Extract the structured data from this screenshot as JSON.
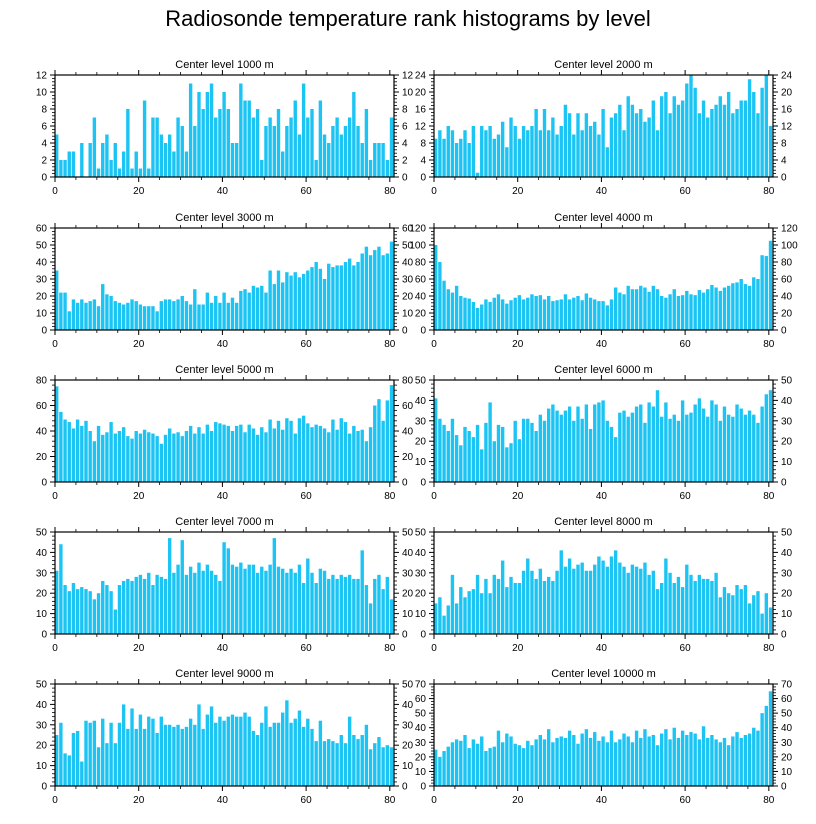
{
  "title": "Radiosonde temperature rank histograms by level",
  "colors": {
    "bar": "#1cc4f4",
    "frame": "#000000"
  },
  "chart_data": [
    {
      "type": "bar",
      "title": "Center level 1000 m",
      "xlim": [
        0,
        81
      ],
      "ylim": [
        0,
        12
      ],
      "yticks": [
        0,
        2,
        4,
        6,
        8,
        10,
        12
      ],
      "xticks": [
        0,
        20,
        40,
        60,
        80
      ],
      "values": [
        5,
        2,
        2,
        3,
        3,
        0,
        4,
        0,
        4,
        7,
        1,
        4,
        5,
        2,
        4,
        1,
        3,
        8,
        1,
        3,
        1,
        9,
        1,
        7,
        7,
        5,
        4,
        5,
        3,
        7,
        6,
        3,
        11,
        6,
        10,
        8,
        10,
        11,
        7,
        8,
        10,
        8,
        4,
        4,
        11,
        9,
        9,
        7,
        8,
        2,
        6,
        7,
        6,
        8,
        3,
        6,
        7,
        9,
        5,
        11,
        7,
        8,
        2,
        9,
        5,
        4,
        6,
        7,
        5,
        6,
        7,
        10,
        6,
        4,
        8,
        2,
        4,
        4,
        4,
        2,
        7
      ]
    },
    {
      "type": "bar",
      "title": "Center level 2000 m",
      "xlim": [
        0,
        81
      ],
      "ylim": [
        0,
        24
      ],
      "yticks": [
        0,
        4,
        8,
        12,
        16,
        20,
        24
      ],
      "xticks": [
        0,
        20,
        40,
        60,
        80
      ],
      "values": [
        9,
        11,
        9,
        12,
        11,
        8,
        9,
        11,
        8,
        12,
        1,
        12,
        11,
        12,
        9,
        10,
        13,
        7,
        14,
        12,
        9,
        12,
        11,
        12,
        16,
        11,
        16,
        11,
        14,
        10,
        12,
        17,
        15,
        10,
        15,
        11,
        15,
        12,
        13,
        10,
        16,
        7,
        14,
        15,
        17,
        11,
        19,
        17,
        15,
        16,
        13,
        14,
        18,
        11,
        19,
        20,
        15,
        19,
        17,
        18,
        22,
        24,
        21,
        15,
        18,
        14,
        16,
        17,
        19,
        17,
        20,
        15,
        16,
        18,
        18,
        23,
        20,
        15,
        21,
        24,
        12
      ]
    },
    {
      "type": "bar",
      "title": "Center level 3000 m",
      "xlim": [
        0,
        81
      ],
      "ylim": [
        0,
        60
      ],
      "yticks": [
        0,
        10,
        20,
        30,
        40,
        50,
        60
      ],
      "xticks": [
        0,
        20,
        40,
        60,
        80
      ],
      "values": [
        35,
        22,
        22,
        11,
        18,
        16,
        18,
        16,
        17,
        18,
        14,
        27,
        21,
        20,
        17,
        16,
        15,
        16,
        18,
        17,
        15,
        14,
        14,
        14,
        11,
        17,
        18,
        18,
        17,
        18,
        20,
        17,
        15,
        24,
        15,
        15,
        22,
        16,
        20,
        16,
        22,
        16,
        19,
        16,
        23,
        24,
        22,
        26,
        25,
        26,
        22,
        35,
        27,
        35,
        28,
        34,
        32,
        34,
        31,
        33,
        35,
        37,
        40,
        36,
        30,
        39,
        37,
        38,
        38,
        40,
        42,
        38,
        40,
        45,
        49,
        44,
        47,
        49,
        44,
        45,
        52
      ]
    },
    {
      "type": "bar",
      "title": "Center level 4000 m",
      "xlim": [
        0,
        81
      ],
      "ylim": [
        0,
        120
      ],
      "yticks": [
        0,
        20,
        40,
        60,
        80,
        100,
        120
      ],
      "xticks": [
        0,
        20,
        40,
        60,
        80
      ],
      "values": [
        100,
        80,
        58,
        48,
        44,
        52,
        40,
        38,
        37,
        33,
        26,
        30,
        36,
        33,
        38,
        42,
        36,
        31,
        35,
        38,
        41,
        36,
        38,
        42,
        40,
        41,
        36,
        40,
        34,
        35,
        36,
        42,
        36,
        38,
        40,
        35,
        43,
        38,
        36,
        34,
        34,
        29,
        36,
        50,
        44,
        42,
        52,
        48,
        48,
        52,
        50,
        45,
        52,
        48,
        40,
        38,
        42,
        48,
        40,
        41,
        46,
        42,
        41,
        47,
        44,
        48,
        53,
        50,
        46,
        50,
        52,
        55,
        56,
        60,
        54,
        52,
        62,
        60,
        88,
        87,
        105
      ]
    },
    {
      "type": "bar",
      "title": "Center level 5000 m",
      "xlim": [
        0,
        81
      ],
      "ylim": [
        0,
        80
      ],
      "yticks": [
        0,
        20,
        40,
        60,
        80
      ],
      "xticks": [
        0,
        20,
        40,
        60,
        80
      ],
      "values": [
        75,
        55,
        49,
        47,
        42,
        49,
        44,
        48,
        40,
        32,
        44,
        37,
        39,
        47,
        38,
        40,
        43,
        36,
        34,
        40,
        38,
        41,
        39,
        38,
        36,
        30,
        37,
        42,
        38,
        39,
        36,
        40,
        44,
        38,
        43,
        38,
        45,
        40,
        47,
        46,
        45,
        44,
        40,
        44,
        45,
        39,
        45,
        42,
        37,
        43,
        39,
        49,
        42,
        48,
        41,
        50,
        48,
        38,
        50,
        52,
        46,
        43,
        45,
        44,
        42,
        39,
        49,
        41,
        50,
        47,
        38,
        44,
        40,
        41,
        32,
        43,
        60,
        65,
        48,
        64,
        76
      ]
    },
    {
      "type": "bar",
      "title": "Center level 6000 m",
      "xlim": [
        0,
        81
      ],
      "ylim": [
        0,
        50
      ],
      "yticks": [
        0,
        10,
        20,
        30,
        40,
        50
      ],
      "xticks": [
        0,
        20,
        40,
        60,
        80
      ],
      "values": [
        41,
        31,
        28,
        25,
        31,
        23,
        18,
        27,
        25,
        22,
        28,
        16,
        29,
        39,
        20,
        28,
        27,
        17,
        19,
        30,
        21,
        31,
        31,
        29,
        25,
        33,
        30,
        36,
        38,
        35,
        33,
        35,
        37,
        30,
        37,
        31,
        38,
        26,
        38,
        39,
        40,
        30,
        27,
        22,
        34,
        35,
        32,
        34,
        37,
        38,
        29,
        39,
        37,
        45,
        32,
        39,
        31,
        33,
        30,
        40,
        33,
        34,
        38,
        41,
        36,
        32,
        40,
        38,
        30,
        37,
        33,
        32,
        38,
        36,
        33,
        35,
        33,
        29,
        37,
        43,
        45
      ]
    },
    {
      "type": "bar",
      "title": "Center level 7000 m",
      "xlim": [
        0,
        81
      ],
      "ylim": [
        0,
        50
      ],
      "yticks": [
        0,
        10,
        20,
        30,
        40,
        50
      ],
      "xticks": [
        0,
        20,
        40,
        60,
        80
      ],
      "values": [
        31,
        44,
        24,
        21,
        25,
        22,
        23,
        22,
        21,
        17,
        20,
        26,
        24,
        21,
        12,
        24,
        26,
        27,
        26,
        28,
        29,
        27,
        30,
        24,
        29,
        28,
        27,
        47,
        30,
        34,
        46,
        29,
        33,
        30,
        35,
        31,
        34,
        31,
        29,
        26,
        45,
        42,
        34,
        33,
        35,
        32,
        34,
        34,
        30,
        33,
        31,
        34,
        47,
        33,
        32,
        30,
        32,
        30,
        34,
        25,
        37,
        30,
        25,
        32,
        31,
        27,
        29,
        27,
        29,
        28,
        29,
        27,
        27,
        41,
        24,
        15,
        27,
        29,
        22,
        28,
        17
      ]
    },
    {
      "type": "bar",
      "title": "Center level 8000 m",
      "xlim": [
        0,
        81
      ],
      "ylim": [
        0,
        50
      ],
      "yticks": [
        0,
        10,
        20,
        30,
        40,
        50
      ],
      "xticks": [
        0,
        20,
        40,
        60,
        80
      ],
      "values": [
        15,
        18,
        9,
        14,
        29,
        15,
        23,
        18,
        21,
        22,
        29,
        20,
        27,
        20,
        29,
        27,
        36,
        23,
        28,
        25,
        25,
        31,
        37,
        31,
        27,
        32,
        26,
        28,
        26,
        31,
        41,
        33,
        37,
        32,
        34,
        35,
        31,
        31,
        34,
        38,
        36,
        33,
        38,
        41,
        35,
        33,
        30,
        34,
        33,
        32,
        35,
        29,
        31,
        22,
        25,
        37,
        30,
        25,
        28,
        23,
        34,
        29,
        26,
        29,
        27,
        27,
        26,
        30,
        18,
        23,
        20,
        19,
        24,
        22,
        24,
        15,
        19,
        21,
        10,
        20,
        13
      ]
    },
    {
      "type": "bar",
      "title": "Center level 9000 m",
      "xlim": [
        0,
        81
      ],
      "ylim": [
        0,
        50
      ],
      "yticks": [
        0,
        10,
        20,
        30,
        40,
        50
      ],
      "xticks": [
        0,
        20,
        40,
        60,
        80
      ],
      "values": [
        25,
        31,
        16,
        15,
        26,
        27,
        12,
        32,
        31,
        32,
        19,
        33,
        21,
        31,
        21,
        31,
        40,
        28,
        38,
        28,
        35,
        28,
        34,
        33,
        26,
        34,
        30,
        30,
        29,
        30,
        28,
        29,
        33,
        30,
        40,
        28,
        35,
        39,
        31,
        34,
        32,
        34,
        35,
        34,
        34,
        36,
        34,
        27,
        25,
        31,
        39,
        29,
        31,
        31,
        36,
        42,
        31,
        33,
        37,
        29,
        33,
        28,
        22,
        32,
        22,
        23,
        22,
        21,
        25,
        21,
        34,
        25,
        23,
        25,
        30,
        18,
        21,
        24,
        19,
        20,
        19
      ]
    },
    {
      "type": "bar",
      "title": "Center level 10000 m",
      "xlim": [
        0,
        81
      ],
      "ylim": [
        0,
        70
      ],
      "yticks": [
        0,
        10,
        20,
        30,
        40,
        50,
        60,
        70
      ],
      "xticks": [
        0,
        20,
        40,
        60,
        80
      ],
      "values": [
        25,
        20,
        24,
        27,
        30,
        32,
        31,
        35,
        26,
        32,
        29,
        34,
        24,
        26,
        27,
        38,
        30,
        36,
        34,
        29,
        28,
        26,
        31,
        28,
        32,
        35,
        32,
        39,
        30,
        33,
        34,
        33,
        38,
        35,
        29,
        36,
        39,
        33,
        37,
        31,
        34,
        30,
        38,
        30,
        32,
        36,
        34,
        30,
        38,
        33,
        39,
        34,
        35,
        28,
        36,
        39,
        32,
        40,
        33,
        38,
        35,
        37,
        36,
        32,
        41,
        33,
        35,
        32,
        30,
        33,
        28,
        34,
        37,
        33,
        35,
        36,
        40,
        38,
        50,
        55,
        65
      ]
    }
  ]
}
